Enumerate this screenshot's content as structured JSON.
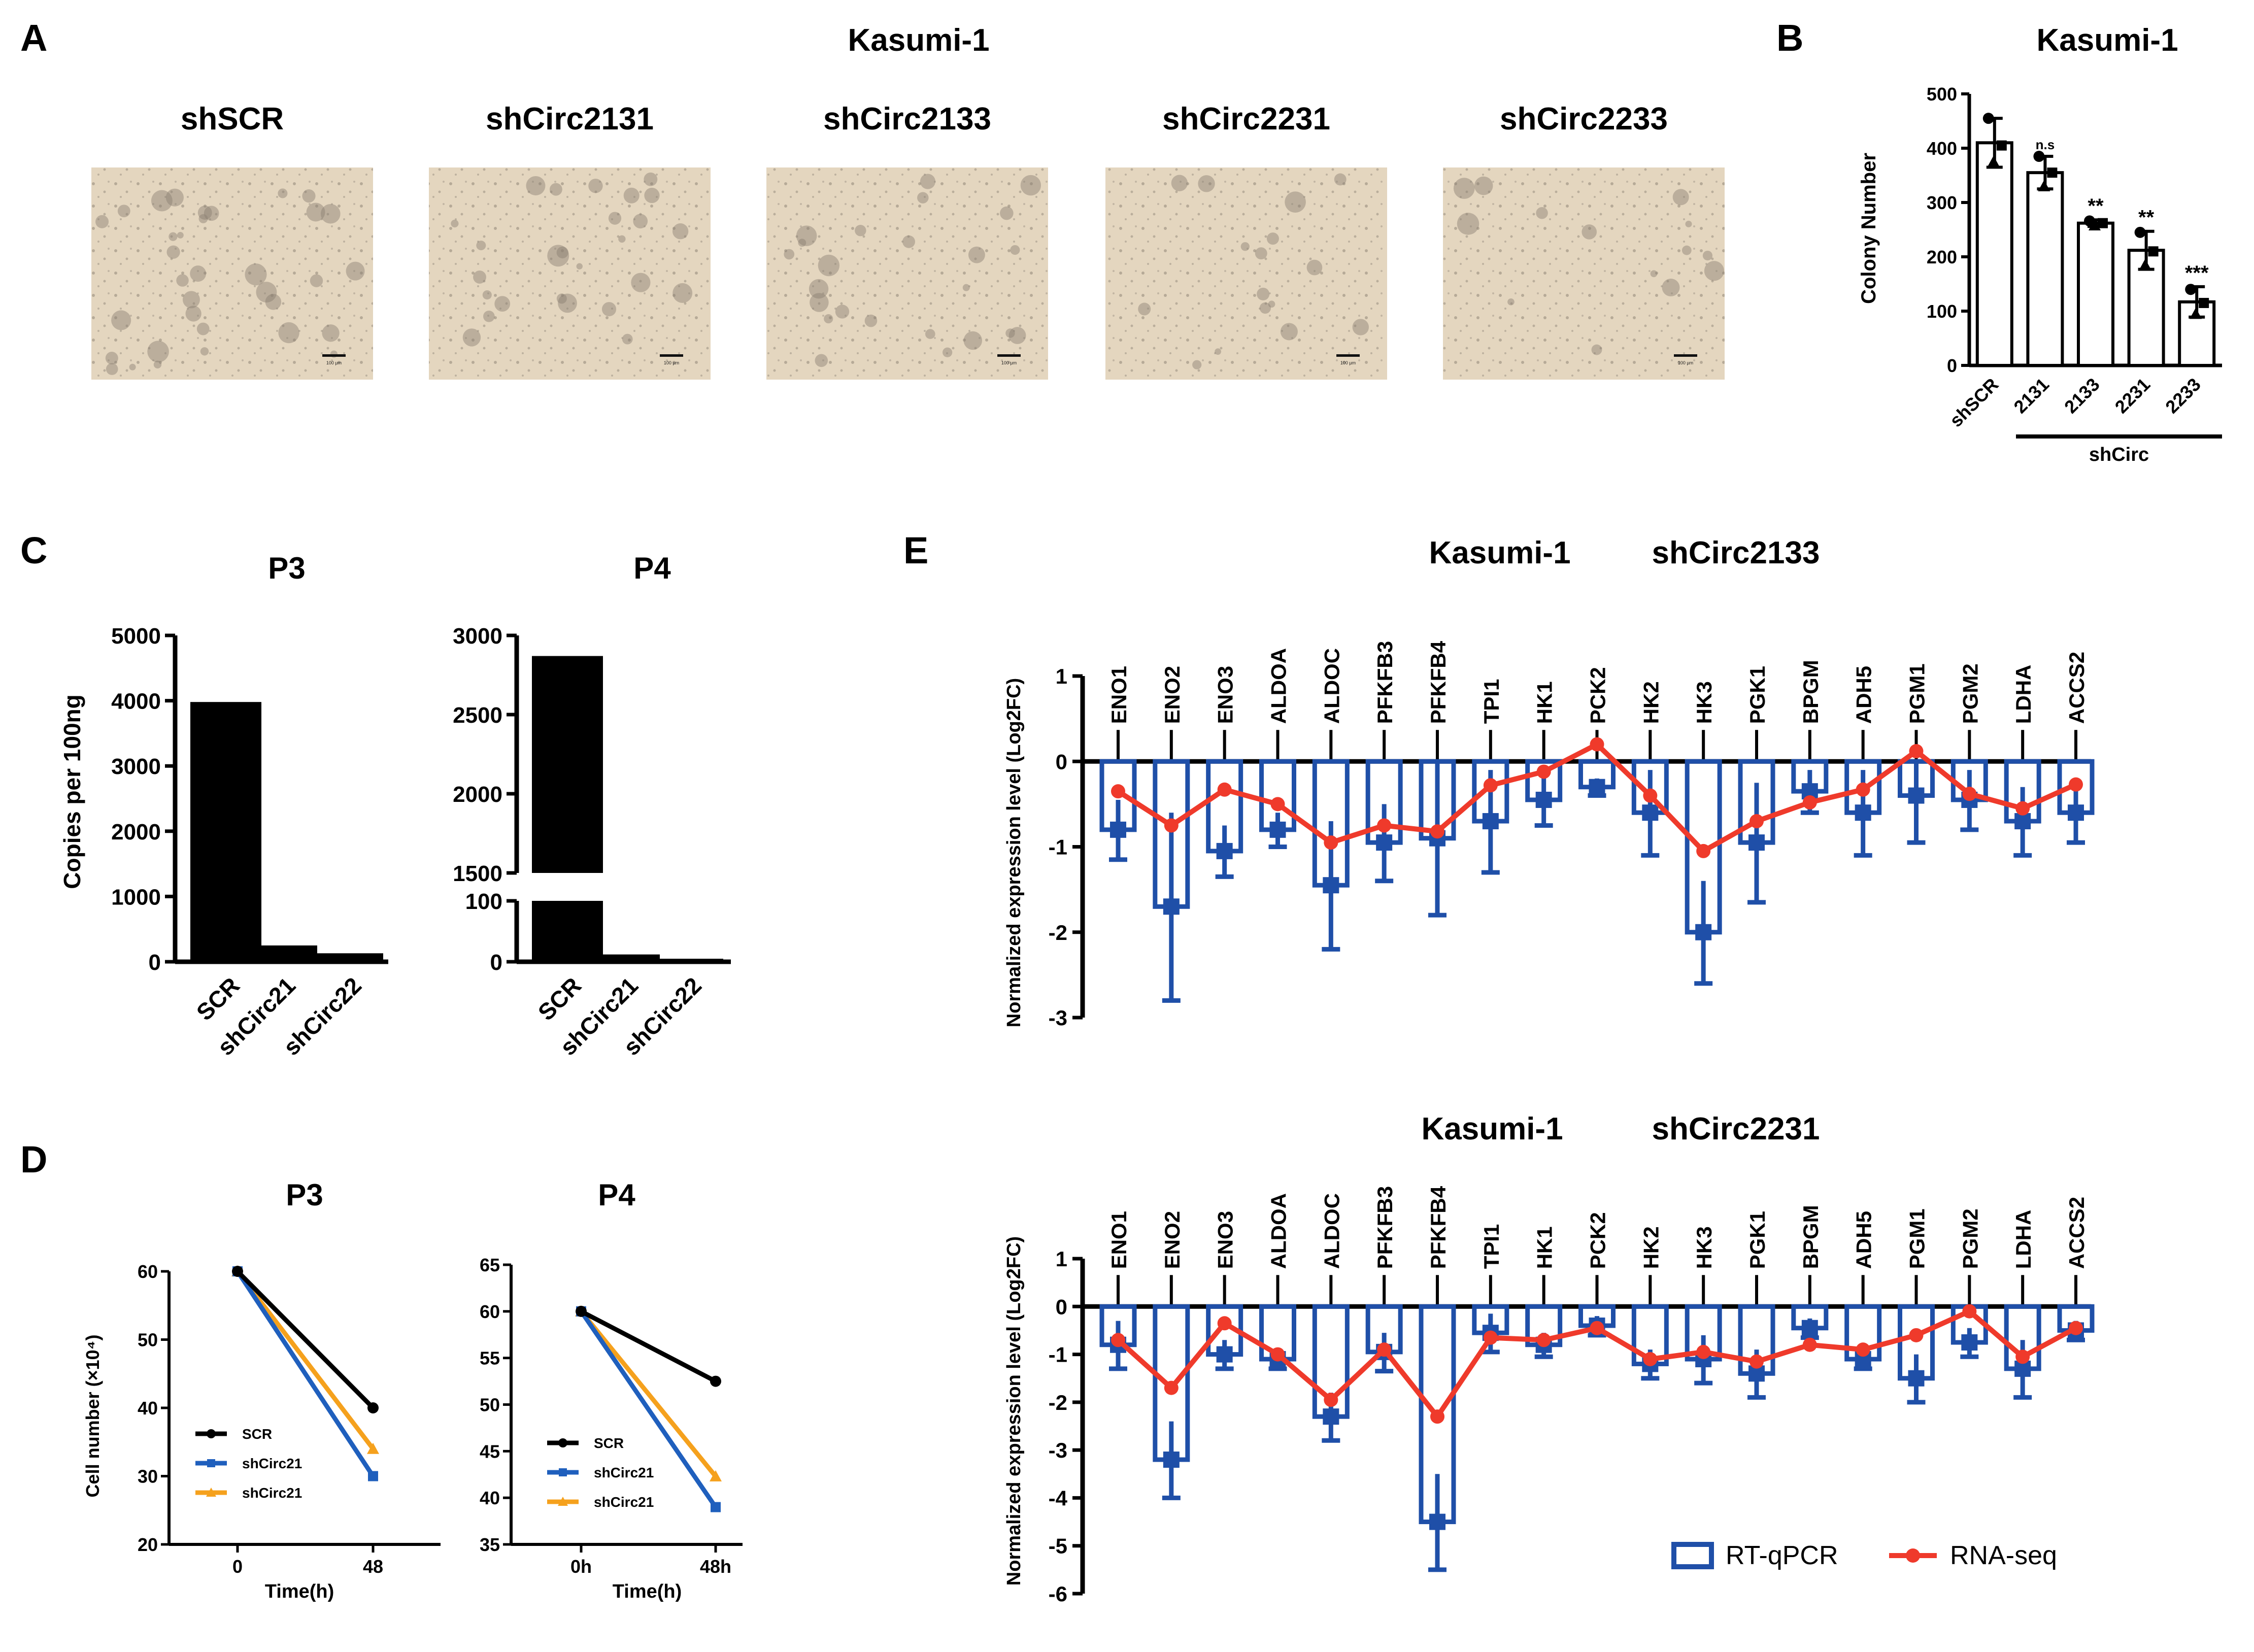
{
  "colors": {
    "black": "#000000",
    "qpcr_blue": "#1f4fa8",
    "seq_red": "#ef3a2b",
    "line_blue": "#1f5fbd",
    "line_orange": "#f5a11d",
    "micro_bg": "#e4d6bf",
    "micro_dot": "#9c9184"
  },
  "panels": {
    "A": "A",
    "B": "B",
    "C": "C",
    "D": "D",
    "E": "E"
  },
  "panelA": {
    "title": "Kasumi-1",
    "images": [
      {
        "label": "shSCR",
        "scalebar": "100 µm"
      },
      {
        "label": "shCirc2131",
        "scalebar": "100 µm"
      },
      {
        "label": "shCirc2133",
        "scalebar": "100 µm"
      },
      {
        "label": "shCirc2231",
        "scalebar": "100 µm"
      },
      {
        "label": "shCirc2233",
        "scalebar": "100 µm"
      }
    ]
  },
  "chart_data": [
    {
      "id": "B",
      "type": "bar",
      "title": "Kasumi-1",
      "ylabel": "Colony Number",
      "ylim": [
        0,
        500
      ],
      "yticks": [
        0,
        100,
        200,
        300,
        400,
        500
      ],
      "categories": [
        "shSCR",
        "2131",
        "2133",
        "2231",
        "2233"
      ],
      "values": [
        410,
        355,
        262,
        212,
        117
      ],
      "errors": [
        45,
        30,
        6,
        35,
        28
      ],
      "points": [
        [
          455,
          405,
          375
        ],
        [
          385,
          355,
          330
        ],
        [
          266,
          262,
          258
        ],
        [
          245,
          210,
          185
        ],
        [
          140,
          115,
          95
        ]
      ],
      "significance": [
        "",
        "n.s",
        "**",
        "**",
        "***"
      ],
      "group_label": "shCirc"
    },
    {
      "id": "C-P3",
      "type": "bar",
      "title": "P3",
      "ylabel": "Copies  per 100ng",
      "ylim": [
        0,
        5000
      ],
      "yticks": [
        0,
        1000,
        2000,
        3000,
        4000,
        5000
      ],
      "categories": [
        "SCR",
        "shCirc21",
        "shCirc22"
      ],
      "values": [
        3980,
        250,
        130
      ]
    },
    {
      "id": "C-P4",
      "type": "bar",
      "title": "P4",
      "axis_break": true,
      "lower_ylim": [
        0,
        100
      ],
      "lower_yticks": [
        0,
        100
      ],
      "upper_ylim": [
        1500,
        3000
      ],
      "upper_yticks": [
        1500,
        2000,
        2500,
        3000
      ],
      "categories": [
        "SCR",
        "shCirc21",
        "shCirc22"
      ],
      "values": [
        2870,
        12,
        5
      ]
    },
    {
      "id": "D-P3",
      "type": "line",
      "title": "P3",
      "xlabel": "Time(h)",
      "ylabel": "Cell number (×10⁴)",
      "ylim": [
        20,
        60
      ],
      "yticks": [
        20,
        30,
        40,
        50,
        60
      ],
      "x": [
        "0",
        "48"
      ],
      "series": [
        {
          "name": "SCR",
          "values": [
            60,
            40
          ],
          "marker": "circle"
        },
        {
          "name": "shCirc21",
          "values": [
            60,
            30
          ],
          "marker": "square"
        },
        {
          "name": "shCirc21",
          "values": [
            60,
            34
          ],
          "marker": "triangle"
        }
      ]
    },
    {
      "id": "D-P4",
      "type": "line",
      "title": "P4",
      "xlabel": "Time(h)",
      "ylim": [
        35,
        65
      ],
      "yticks": [
        35,
        40,
        45,
        50,
        55,
        60,
        65
      ],
      "x": [
        "0h",
        "48h"
      ],
      "series": [
        {
          "name": "SCR",
          "values": [
            60,
            52.5
          ],
          "marker": "circle"
        },
        {
          "name": "shCirc21",
          "values": [
            60,
            39
          ],
          "marker": "square"
        },
        {
          "name": "shCirc21",
          "values": [
            60,
            42.3
          ],
          "marker": "triangle"
        }
      ]
    },
    {
      "id": "E1",
      "type": "bar",
      "title": "Kasumi-1",
      "subtitle": "shCirc2133",
      "ylabel": "Normalized expression level (Log2FC)",
      "ylim": [
        -3,
        1
      ],
      "yticks": [
        -3,
        -2,
        -1,
        0,
        1
      ],
      "categories": [
        "ENO1",
        "ENO2",
        "ENO3",
        "ALDOA",
        "ALDOC",
        "PFKFB3",
        "PFKFB4",
        "TPI1",
        "HK1",
        "PCK2",
        "HK2",
        "HK3",
        "PGK1",
        "BPGM",
        "ADH5",
        "PGM1",
        "PGM2",
        "LDHA",
        "ACCS2"
      ],
      "series": [
        {
          "name": "RT-qPCR",
          "type": "bar",
          "values": [
            -0.8,
            -1.7,
            -1.05,
            -0.8,
            -1.45,
            -0.95,
            -0.9,
            -0.7,
            -0.45,
            -0.3,
            -0.6,
            -2.0,
            -0.95,
            -0.35,
            -0.6,
            -0.4,
            -0.45,
            -0.7,
            -0.6
          ],
          "errors": [
            0.35,
            1.1,
            0.3,
            0.2,
            0.75,
            0.45,
            0.9,
            0.6,
            0.3,
            0.1,
            0.5,
            0.6,
            0.7,
            0.25,
            0.5,
            0.55,
            0.35,
            0.4,
            0.35
          ]
        },
        {
          "name": "RNA-seq",
          "type": "line",
          "values": [
            -0.35,
            -0.75,
            -0.33,
            -0.5,
            -0.95,
            -0.75,
            -0.82,
            -0.28,
            -0.12,
            0.2,
            -0.4,
            -1.05,
            -0.7,
            -0.48,
            -0.33,
            0.12,
            -0.38,
            -0.55,
            -0.27
          ]
        }
      ]
    },
    {
      "id": "E2",
      "type": "bar",
      "title": "Kasumi-1",
      "subtitle": "shCirc2231",
      "ylabel": "Normalized expression level (Log2FC)",
      "ylim": [
        -6,
        1
      ],
      "yticks": [
        -6,
        -5,
        -4,
        -3,
        -2,
        -1,
        0,
        1
      ],
      "categories": [
        "ENO1",
        "ENO2",
        "ENO3",
        "ALDOA",
        "ALDOC",
        "PFKFB3",
        "PFKFB4",
        "TPI1",
        "HK1",
        "PCK2",
        "HK2",
        "HK3",
        "PGK1",
        "BPGM",
        "ADH5",
        "PGM1",
        "PGM2",
        "LDHA",
        "ACCS2"
      ],
      "series": [
        {
          "name": "RT-qPCR",
          "type": "bar",
          "values": [
            -0.8,
            -3.2,
            -1.0,
            -1.1,
            -2.3,
            -0.95,
            -4.5,
            -0.55,
            -0.8,
            -0.4,
            -1.2,
            -1.1,
            -1.4,
            -0.45,
            -1.1,
            -1.5,
            -0.75,
            -1.3,
            -0.5
          ],
          "errors": [
            0.5,
            0.8,
            0.3,
            0.2,
            0.5,
            0.4,
            1.0,
            0.4,
            0.25,
            0.2,
            0.3,
            0.5,
            0.5,
            0.2,
            0.2,
            0.5,
            0.3,
            0.6,
            0.2
          ]
        },
        {
          "name": "RNA-seq",
          "type": "line",
          "values": [
            -0.7,
            -1.7,
            -0.35,
            -1.0,
            -1.95,
            -0.9,
            -2.3,
            -0.65,
            -0.7,
            -0.45,
            -1.1,
            -0.95,
            -1.15,
            -0.8,
            -0.9,
            -0.6,
            -0.1,
            -1.05,
            -0.45
          ]
        }
      ]
    }
  ],
  "legend": {
    "qpcr": "RT-qPCR",
    "seq": "RNA-seq"
  }
}
